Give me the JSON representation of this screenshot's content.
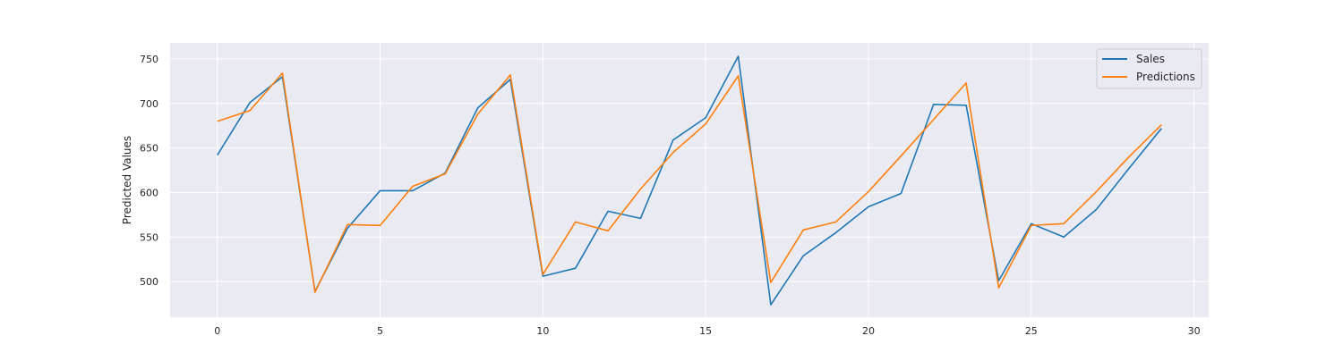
{
  "chart_data": {
    "type": "line",
    "title": "",
    "xlabel": "",
    "ylabel": "Predicted Values",
    "xlim": [
      -1.45,
      30.45
    ],
    "ylim": [
      460,
      768
    ],
    "x_ticks": [
      0,
      5,
      10,
      15,
      20,
      25,
      30
    ],
    "y_ticks": [
      500,
      550,
      600,
      650,
      700,
      750
    ],
    "grid": true,
    "legend_position": "top-right",
    "x": [
      0,
      1,
      2,
      3,
      4,
      5,
      6,
      7,
      8,
      9,
      10,
      11,
      12,
      13,
      14,
      15,
      16,
      17,
      18,
      19,
      20,
      21,
      22,
      23,
      24,
      25,
      26,
      27,
      28,
      29
    ],
    "series": [
      {
        "name": "Sales",
        "color": "#1f77b4",
        "values": [
          642,
          701,
          730,
          489,
          560,
          602,
          602,
          622,
          695,
          727,
          506,
          515,
          579,
          571,
          659,
          684,
          753,
          474,
          529,
          555,
          584,
          599,
          699,
          698,
          501,
          565,
          550,
          581,
          627,
          672
        ]
      },
      {
        "name": "Predictions",
        "color": "#ff7f0e",
        "values": [
          680,
          692,
          734,
          488,
          564,
          563,
          607,
          621,
          688,
          732,
          508,
          567,
          557,
          604,
          645,
          677,
          731,
          499,
          558,
          567,
          601,
          641,
          682,
          723,
          493,
          563,
          565,
          601,
          640,
          676
        ]
      }
    ],
    "colors": {
      "plot_background": "#eaeaf2",
      "grid": "#ffffff"
    }
  }
}
